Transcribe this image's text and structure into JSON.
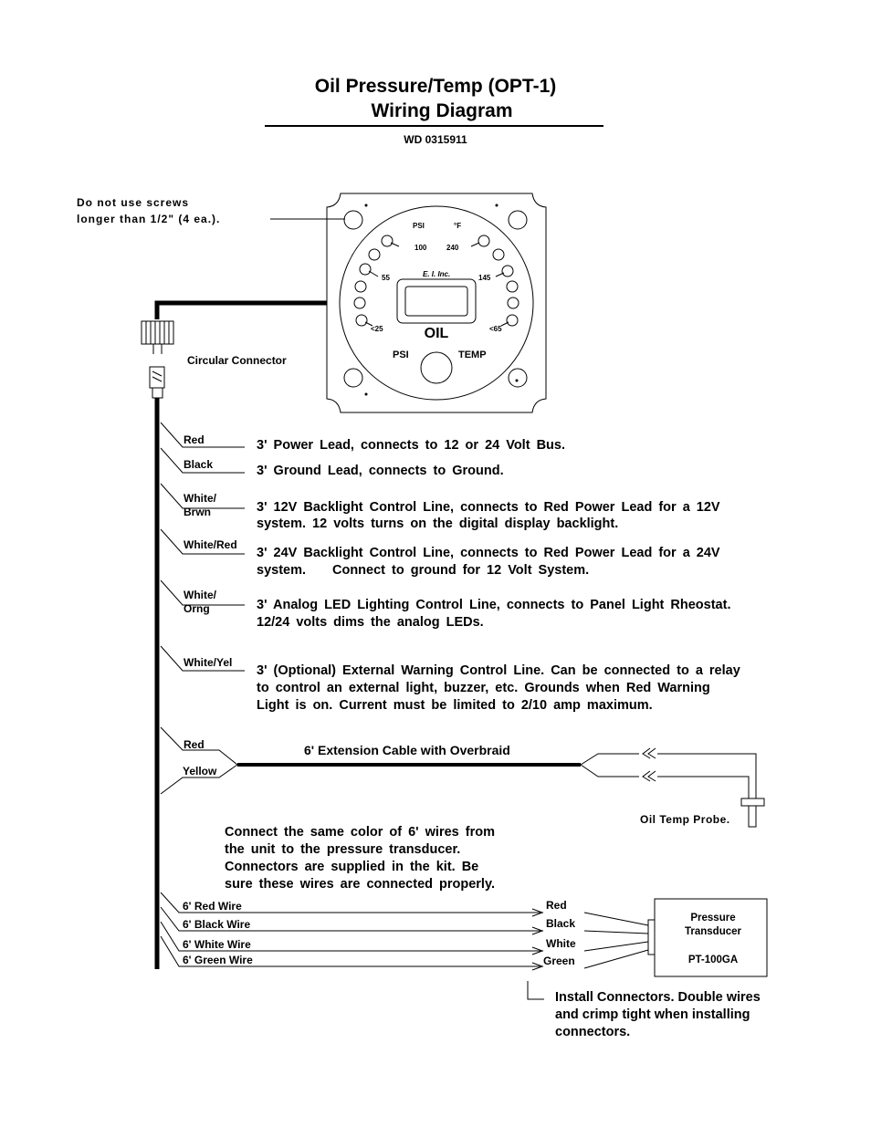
{
  "header": {
    "title": [
      "Oil Pressure/Temp (OPT-1)",
      "Wiring Diagram"
    ],
    "doc_number": "WD 0315911"
  },
  "screw_note": [
    "Do not use screws",
    "longer than 1/2\" (4 ea.)."
  ],
  "gauge": {
    "psi_scale": "PSI",
    "temp_scale": "°F",
    "psi_high": "100",
    "temp_high": "240",
    "maker": "E. I. Inc.",
    "psi_mid": "55",
    "temp_mid": "145",
    "psi_low": "<25",
    "temp_low": "<65",
    "display": "OIL",
    "psi": "PSI",
    "temp": "TEMP"
  },
  "circular_connector": "Circular Connector",
  "leads": [
    {
      "wire": [
        "Red"
      ],
      "text": [
        "3' Power Lead, connects to 12 or 24 Volt Bus."
      ]
    },
    {
      "wire": [
        "Black"
      ],
      "text": [
        "3' Ground Lead, connects to Ground."
      ]
    },
    {
      "wire": [
        "White/",
        "Brwn"
      ],
      "text": [
        "3' 12V Backlight Control Line, connects to Red Power Lead for a 12V",
        "system. 12 volts turns on the digital display backlight."
      ]
    },
    {
      "wire": [
        "White/Red"
      ],
      "text": [
        "3' 24V Backlight Control Line, connects to Red Power Lead for a 24V",
        "system."
      ],
      "emphasis": "Connect to ground for 12 Volt System."
    },
    {
      "wire": [
        "White/",
        "Orng"
      ],
      "text": [
        "3' Analog LED Lighting Control Line, connects to Panel Light Rheostat.",
        "12/24 volts dims the analog LEDs."
      ]
    },
    {
      "wire": [
        "White/Yel"
      ],
      "text": [
        "3' (Optional) External Warning Control Line. Can be connected to a relay",
        "to control an external light, buzzer, etc. Grounds when Red Warning",
        "Light is on. Current must be limited to 2/10 amp maximum."
      ]
    }
  ],
  "extension": {
    "wires": [
      "Red",
      "Yellow"
    ],
    "label": "6' Extension Cable with Overbraid",
    "probe": "Oil Temp Probe."
  },
  "transducer_note": [
    "Connect the same color of 6' wires from",
    "the unit to the pressure transducer.",
    "Connectors are supplied in the kit. Be",
    "sure these wires are connected properly."
  ],
  "transducer_wires": {
    "unit_side": [
      "6' Red Wire",
      "6' Black Wire",
      "6' White Wire",
      "6' Green Wire"
    ],
    "transducer_side": [
      "Red",
      "Black",
      "White",
      "Green"
    ]
  },
  "transducer": {
    "name": [
      "Pressure",
      "Transducer"
    ],
    "model": "PT-100GA"
  },
  "connector_note": [
    "Install Connectors. Double wires",
    "and crimp tight when installing",
    "connectors."
  ]
}
